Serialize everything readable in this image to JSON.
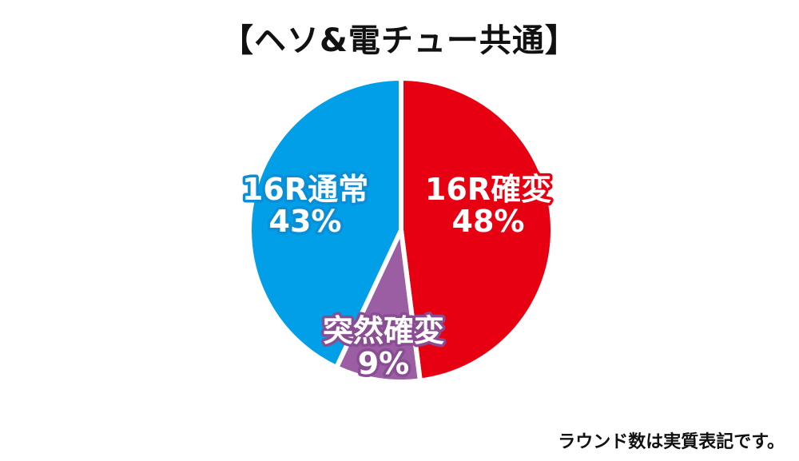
{
  "chart_data": {
    "type": "pie",
    "title": "【ヘソ&電チュー共通】",
    "start_angle_deg": 0,
    "direction": "clockwise",
    "slices": [
      {
        "name": "16R確変",
        "value": 48,
        "label": "48%",
        "color": "#e60012",
        "label_stroke": "#e60012"
      },
      {
        "name": "突然確変",
        "value": 9,
        "label": "9%",
        "color": "#9b5ea2",
        "label_stroke": "#8a4d93"
      },
      {
        "name": "16R通常",
        "value": 43,
        "label": "43%",
        "color": "#009fe8",
        "label_stroke": "#0a8fd6"
      }
    ]
  },
  "footnote": "ラウンド数は実質表記です。"
}
